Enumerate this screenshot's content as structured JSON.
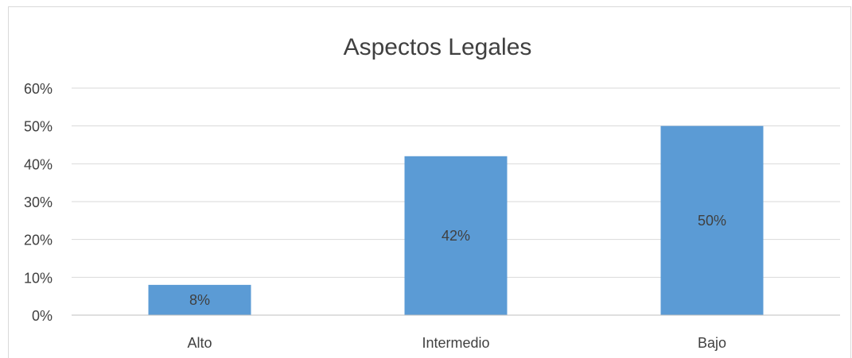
{
  "chart_data": {
    "type": "bar",
    "title": "Aspectos Legales",
    "categories": [
      "Alto",
      "Intermedio",
      "Bajo"
    ],
    "values": [
      0.08,
      0.42,
      0.5
    ],
    "data_labels": [
      "8%",
      "42%",
      "50%"
    ],
    "ylim": [
      0,
      0.6
    ],
    "yticks": [
      0,
      0.1,
      0.2,
      0.3,
      0.4,
      0.5,
      0.6
    ],
    "ytick_labels": [
      "0%",
      "10%",
      "20%",
      "30%",
      "40%",
      "50%",
      "60%"
    ],
    "grid": true,
    "bar_color": "#5b9bd5",
    "xlabel": "",
    "ylabel": ""
  }
}
